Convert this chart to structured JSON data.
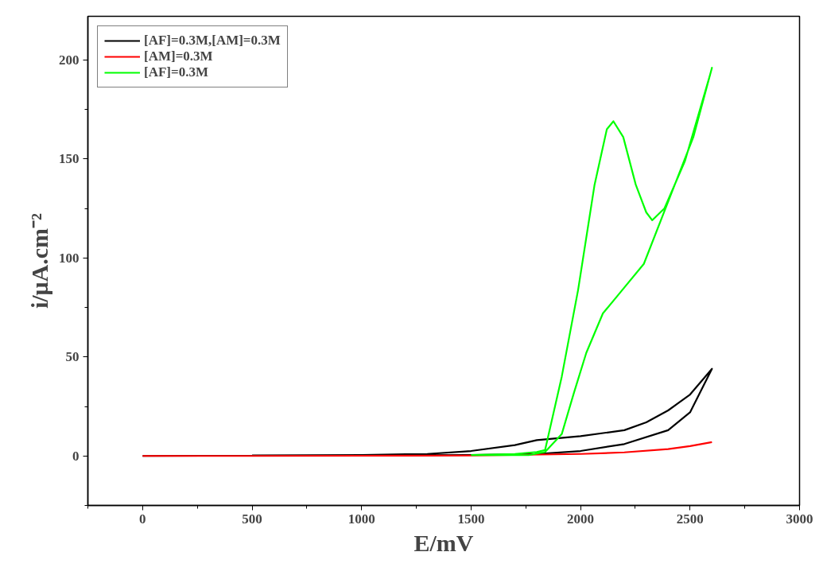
{
  "chart_data": {
    "type": "line",
    "xlabel": "E/mV",
    "ylabel": "i/μA.cm⁻²",
    "xlim": [
      -250,
      3000
    ],
    "ylim": [
      -25,
      222
    ],
    "xticks": [
      {
        "value": -250,
        "label": null
      },
      0,
      {
        "value": 250,
        "label": null
      },
      500,
      {
        "value": 750,
        "label": null
      },
      1000,
      {
        "value": 1250,
        "label": null
      },
      1500,
      {
        "value": 1750,
        "label": null
      },
      2000,
      {
        "value": 2250,
        "label": null
      },
      2500,
      {
        "value": 2750,
        "label": null
      },
      3000
    ],
    "yticks": [
      {
        "value": -25,
        "label": null
      },
      0,
      {
        "value": 25,
        "label": null
      },
      50,
      {
        "value": 75,
        "label": null
      },
      100,
      {
        "value": 125,
        "label": null
      },
      150,
      {
        "value": 175,
        "label": null
      },
      200
    ],
    "grid": false,
    "legend": "top left",
    "line_style": "solid",
    "marker": "none",
    "series": [
      {
        "name": "[AF]=0.3M,[AM]=0.3M",
        "color": "#000000",
        "x": [
          0,
          500,
          1000,
          1500,
          1800,
          2000,
          2200,
          2400,
          2500,
          2600,
          2500,
          2400,
          2300,
          2200,
          2000,
          1800,
          1700,
          1500,
          1300,
          1000,
          500
        ],
        "values": [
          0,
          0.2,
          0.3,
          0.5,
          1,
          2.5,
          6,
          13,
          22,
          44,
          31,
          23,
          17,
          13,
          10,
          8,
          5.5,
          2.5,
          1,
          0.5,
          0.3
        ]
      },
      {
        "name": "[AM]=0.3M",
        "color": "#ff0000",
        "x": [
          0,
          500,
          1000,
          1500,
          2000,
          2200,
          2400,
          2500,
          2600
        ],
        "values": [
          0,
          0,
          0.1,
          0.2,
          1,
          1.8,
          3.5,
          5,
          7
        ]
      },
      {
        "name": "[AF]=0.3M",
        "color": "#00ff00",
        "x": [
          1500,
          1700,
          1800,
          1838,
          1914,
          1989,
          2064,
          2120,
          2150,
          2195,
          2252,
          2300,
          2327,
          2383,
          2477,
          2590,
          2600,
          2515,
          2402,
          2289,
          2177,
          2102,
          2026,
          1970,
          1914,
          1838,
          1763,
          1500
        ],
        "values": [
          0.5,
          1,
          2,
          3,
          40,
          84,
          137,
          165,
          169,
          161,
          137,
          123,
          119,
          125,
          149,
          192,
          196,
          161,
          129,
          97,
          82,
          72,
          52,
          32,
          11,
          2,
          0.4,
          0.4
        ]
      }
    ]
  }
}
